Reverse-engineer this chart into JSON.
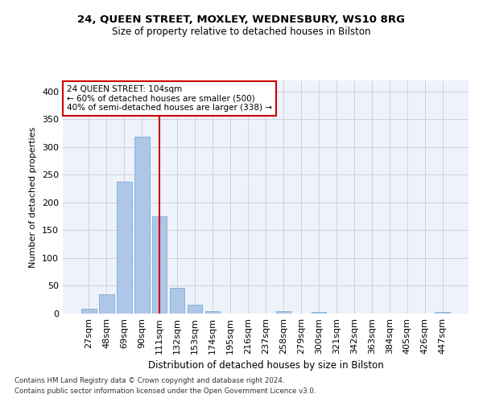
{
  "title1": "24, QUEEN STREET, MOXLEY, WEDNESBURY, WS10 8RG",
  "title2": "Size of property relative to detached houses in Bilston",
  "xlabel": "Distribution of detached houses by size in Bilston",
  "ylabel": "Number of detached properties",
  "categories": [
    "27sqm",
    "48sqm",
    "69sqm",
    "90sqm",
    "111sqm",
    "132sqm",
    "153sqm",
    "174sqm",
    "195sqm",
    "216sqm",
    "237sqm",
    "258sqm",
    "279sqm",
    "300sqm",
    "321sqm",
    "342sqm",
    "363sqm",
    "384sqm",
    "405sqm",
    "426sqm",
    "447sqm"
  ],
  "values": [
    8,
    35,
    238,
    318,
    175,
    46,
    16,
    5,
    0,
    0,
    0,
    4,
    0,
    3,
    0,
    0,
    0,
    0,
    0,
    0,
    3
  ],
  "bar_color": "#aec6e8",
  "bar_edge_color": "#7bafd4",
  "vline_x": 4,
  "vline_color": "#cc0000",
  "annotation_text": "24 QUEEN STREET: 104sqm\n← 60% of detached houses are smaller (500)\n40% of semi-detached houses are larger (338) →",
  "annotation_box_color": "#ffffff",
  "annotation_box_edge": "#cc0000",
  "footnote1": "Contains HM Land Registry data © Crown copyright and database right 2024.",
  "footnote2": "Contains public sector information licensed under the Open Government Licence v3.0.",
  "ylim": [
    0,
    420
  ],
  "bg_color": "#eef2fb",
  "grid_color": "#cccccc"
}
